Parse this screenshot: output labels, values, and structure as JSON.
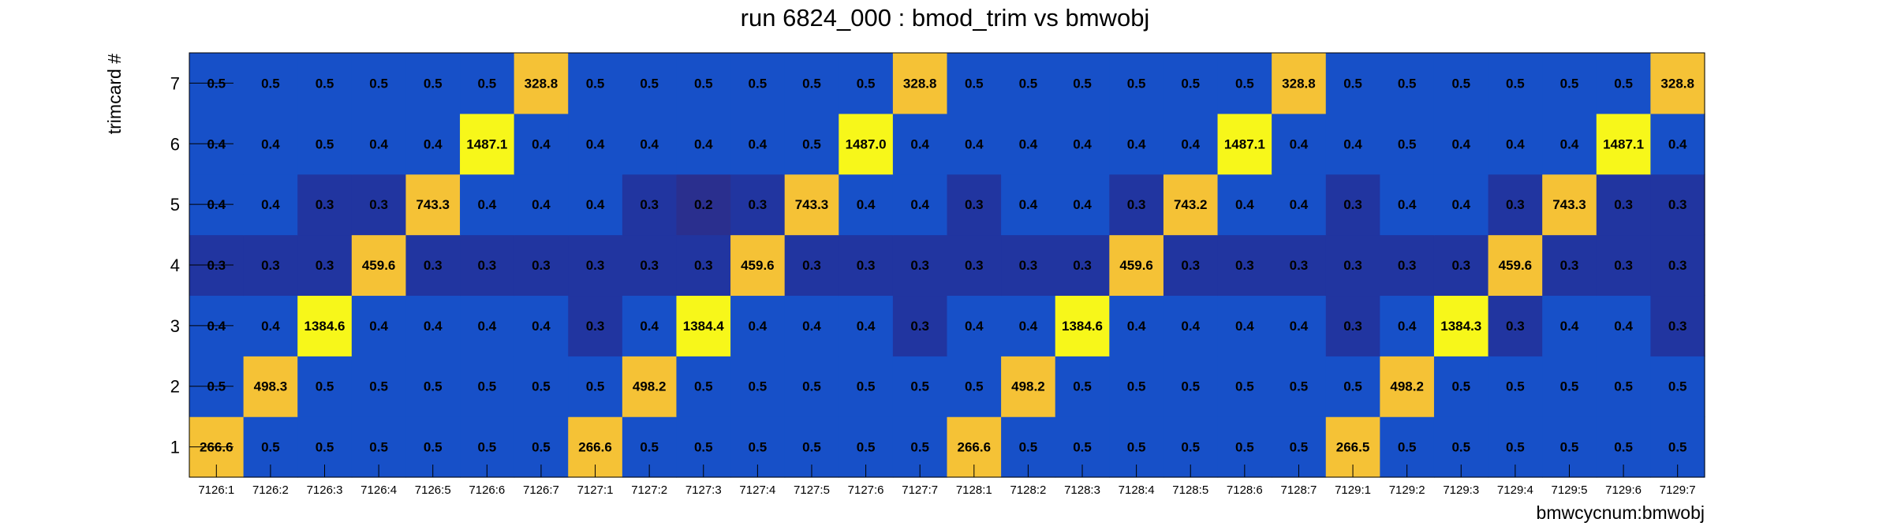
{
  "chart_data": {
    "type": "heatmap",
    "title": "run 6824_000 : bmod_trim vs bmwobj",
    "xlabel": "bmwcycnum:bmwobj",
    "ylabel": "trimcard #",
    "x_categories": [
      "7126:1",
      "7126:2",
      "7126:3",
      "7126:4",
      "7126:5",
      "7126:6",
      "7126:7",
      "7127:1",
      "7127:2",
      "7127:3",
      "7127:4",
      "7127:5",
      "7127:6",
      "7127:7",
      "7128:1",
      "7128:2",
      "7128:3",
      "7128:4",
      "7128:5",
      "7128:6",
      "7128:7",
      "7129:1",
      "7129:2",
      "7129:3",
      "7129:4",
      "7129:5",
      "7129:6",
      "7129:7"
    ],
    "y_categories": [
      "1",
      "2",
      "3",
      "4",
      "5",
      "6",
      "7"
    ],
    "values": [
      [
        "266.6",
        "0.5",
        "0.5",
        "0.5",
        "0.5",
        "0.5",
        "0.5",
        "266.6",
        "0.5",
        "0.5",
        "0.5",
        "0.5",
        "0.5",
        "0.5",
        "266.6",
        "0.5",
        "0.5",
        "0.5",
        "0.5",
        "0.5",
        "0.5",
        "266.5",
        "0.5",
        "0.5",
        "0.5",
        "0.5",
        "0.5",
        "0.5"
      ],
      [
        "0.5",
        "498.3",
        "0.5",
        "0.5",
        "0.5",
        "0.5",
        "0.5",
        "0.5",
        "498.2",
        "0.5",
        "0.5",
        "0.5",
        "0.5",
        "0.5",
        "0.5",
        "498.2",
        "0.5",
        "0.5",
        "0.5",
        "0.5",
        "0.5",
        "0.5",
        "498.2",
        "0.5",
        "0.5",
        "0.5",
        "0.5",
        "0.5"
      ],
      [
        "0.4",
        "0.4",
        "1384.6",
        "0.4",
        "0.4",
        "0.4",
        "0.4",
        "0.3",
        "0.4",
        "1384.4",
        "0.4",
        "0.4",
        "0.4",
        "0.3",
        "0.4",
        "0.4",
        "1384.6",
        "0.4",
        "0.4",
        "0.4",
        "0.4",
        "0.3",
        "0.4",
        "1384.3",
        "0.3",
        "0.4",
        "0.4",
        "0.3"
      ],
      [
        "0.3",
        "0.3",
        "0.3",
        "459.6",
        "0.3",
        "0.3",
        "0.3",
        "0.3",
        "0.3",
        "0.3",
        "459.6",
        "0.3",
        "0.3",
        "0.3",
        "0.3",
        "0.3",
        "0.3",
        "459.6",
        "0.3",
        "0.3",
        "0.3",
        "0.3",
        "0.3",
        "0.3",
        "459.6",
        "0.3",
        "0.3",
        "0.3"
      ],
      [
        "0.4",
        "0.4",
        "0.3",
        "0.3",
        "743.3",
        "0.4",
        "0.4",
        "0.4",
        "0.3",
        "0.2",
        "0.3",
        "743.3",
        "0.4",
        "0.4",
        "0.3",
        "0.4",
        "0.4",
        "0.3",
        "743.2",
        "0.4",
        "0.4",
        "0.3",
        "0.4",
        "0.4",
        "0.3",
        "743.3",
        "0.3",
        "0.3"
      ],
      [
        "0.4",
        "0.4",
        "0.5",
        "0.4",
        "0.4",
        "1487.1",
        "0.4",
        "0.4",
        "0.4",
        "0.4",
        "0.4",
        "0.5",
        "1487.0",
        "0.4",
        "0.4",
        "0.4",
        "0.4",
        "0.4",
        "0.4",
        "1487.1",
        "0.4",
        "0.4",
        "0.5",
        "0.4",
        "0.4",
        "0.4",
        "1487.1",
        "0.4"
      ],
      [
        "0.5",
        "0.5",
        "0.5",
        "0.5",
        "0.5",
        "0.5",
        "328.8",
        "0.5",
        "0.5",
        "0.5",
        "0.5",
        "0.5",
        "0.5",
        "328.8",
        "0.5",
        "0.5",
        "0.5",
        "0.5",
        "0.5",
        "0.5",
        "328.8",
        "0.5",
        "0.5",
        "0.5",
        "0.5",
        "0.5",
        "0.5",
        "328.8"
      ]
    ],
    "grid": false,
    "legend": "none",
    "colors": {
      "low_blue": "#1750c8",
      "mid_blue": "#2135a0",
      "lowest_blue": "#2a2f8e",
      "orange": "#f5c236",
      "yellow": "#f7f71a"
    }
  }
}
